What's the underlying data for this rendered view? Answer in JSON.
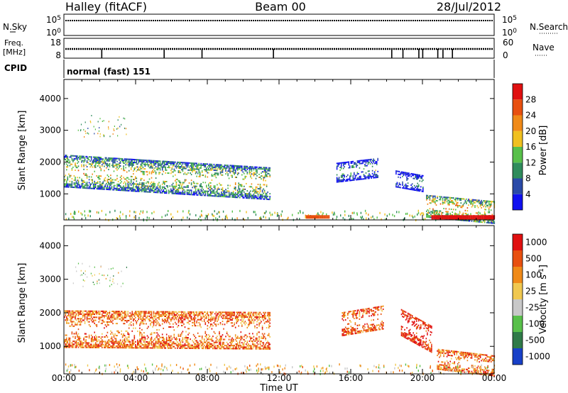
{
  "header": {
    "station": "Halley (fitACF)",
    "beam": "Beam 00",
    "date": "28/Jul/2012"
  },
  "aux": {
    "nsky_label": "N.Sky",
    "nsky_ticks": [
      "10^5",
      "10^0"
    ],
    "nsearch_label": "N.Search",
    "nsearch_ticks": [
      "10^5",
      "10^0"
    ],
    "freq_label_line1": "Freq.",
    "freq_label_line2": "[MHz]",
    "freq_ticks": [
      "18",
      "8"
    ],
    "nave_label": "Nave",
    "nave_ticks": [
      "60",
      "0"
    ],
    "cpid_label": "CPID",
    "cpid_value": "normal (fast) 151"
  },
  "chart_data": [
    {
      "type": "heatmap",
      "name": "power",
      "ylabel": "Slant Range [km]",
      "yticks": [
        1000,
        2000,
        3000,
        4000
      ],
      "ylim": [
        180,
        4600
      ],
      "xlim": [
        0,
        24
      ],
      "colorbar": {
        "label": "Power [dB]",
        "ticks": [
          "4",
          "8",
          "12",
          "16",
          "20",
          "24",
          "28"
        ],
        "colors": [
          "#1010f0",
          "#2a4aa8",
          "#2f8c5c",
          "#58c04a",
          "#f0c020",
          "#f08a18",
          "#e85010",
          "#e01010"
        ]
      },
      "bands": [
        {
          "t0": 0.0,
          "t1": 11.5,
          "r_center_start": 1700,
          "r_center_end": 1300,
          "thickness": 500,
          "level": 0.6
        },
        {
          "t0": 15.2,
          "t1": 17.5,
          "r_center_start": 1650,
          "r_center_end": 1800,
          "thickness": 300,
          "level": 0.4
        },
        {
          "t0": 18.5,
          "t1": 20.0,
          "r_center_start": 1450,
          "r_center_end": 1300,
          "thickness": 250,
          "level": 0.35
        },
        {
          "t0": 20.2,
          "t1": 24.0,
          "r_center_start": 600,
          "r_center_end": 400,
          "thickness": 350,
          "level": 0.7
        }
      ]
    },
    {
      "type": "heatmap",
      "name": "velocity",
      "xlabel": "Time UT",
      "ylabel": "Slant Range [km]",
      "xticks": [
        "00:00",
        "04:00",
        "08:00",
        "12:00",
        "16:00",
        "20:00",
        "00:00"
      ],
      "yticks": [
        1000,
        2000,
        3000,
        4000
      ],
      "ylim": [
        180,
        4600
      ],
      "xlim": [
        0,
        24
      ],
      "colorbar": {
        "label": "Velocity [m s^-1]",
        "ticks": [
          "1000",
          "500",
          "100",
          "25",
          "-25",
          "-100",
          "-500",
          "-1000"
        ],
        "colors": [
          "#1840c8",
          "#2f7a48",
          "#58c04a",
          "#c8c8c8",
          "#f0c850",
          "#f08a18",
          "#e85010",
          "#e01010"
        ]
      },
      "bands": [
        {
          "t0": 0.0,
          "t1": 11.5,
          "r_center_start": 1500,
          "r_center_end": 1450,
          "thickness": 550,
          "level": 0.75
        },
        {
          "t0": 15.5,
          "t1": 17.8,
          "r_center_start": 1650,
          "r_center_end": 1850,
          "thickness": 350,
          "level": 0.8
        },
        {
          "t0": 18.8,
          "t1": 20.5,
          "r_center_start": 1700,
          "r_center_end": 1200,
          "thickness": 400,
          "level": 0.9
        },
        {
          "t0": 20.8,
          "t1": 24.0,
          "r_center_start": 600,
          "r_center_end": 400,
          "thickness": 300,
          "level": 0.75
        }
      ]
    }
  ]
}
